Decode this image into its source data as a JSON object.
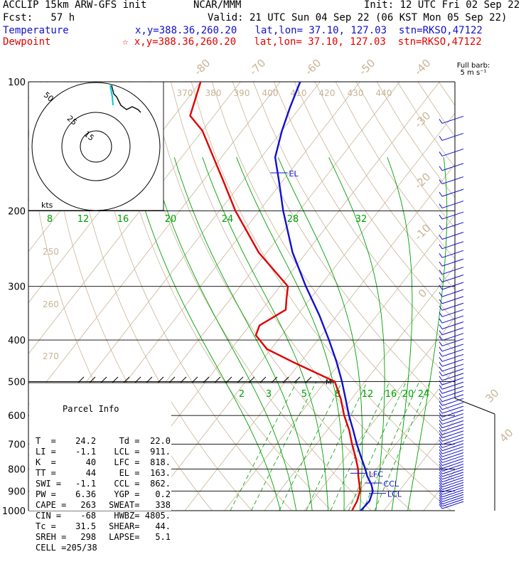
{
  "header": {
    "model": "ACCLIP 15km ARW-GFS init",
    "org": "NCAR/MMM",
    "init": "Init: 12 UTC Fri 02 Sep 22",
    "fcst": "Fcst:   57 h",
    "valid": "Valid: 21 UTC Sun 04 Sep 22 (06 KST Mon 05 Sep 22)",
    "temp_label": "Temperature",
    "temp_info": "x,y=388.36,260.20   lat,lon= 37.10, 127.03  stn=RKSO,47122",
    "dew_label": "Dewpoint",
    "dew_info": "☆ x,y=388.36,260.20   lat,lon= 37.10, 127.03  stn=RKSO,47122"
  },
  "barb_legend": {
    "line1": "Full barb:",
    "line2": "5 m s⁻¹"
  },
  "hodograph": {
    "units": "kts",
    "ring_labels": [
      "50",
      "25",
      "15"
    ]
  },
  "parcel": {
    "title": "Parcel Info",
    "rows": [
      [
        "T  =",
        "24.2",
        "Td =",
        "22.0"
      ],
      [
        "LI =",
        "-1.1",
        "LCL =",
        "911."
      ],
      [
        "K  =",
        "40",
        "LFC =",
        "818."
      ],
      [
        "TT =",
        "44",
        "EL =",
        "163."
      ],
      [
        "SWI =",
        "-1.1",
        "CCL =",
        "862."
      ],
      [
        "PW =",
        "6.36",
        "YGP =",
        "0.2"
      ],
      [
        "CAPE =",
        "263",
        "SWEAT=",
        "338"
      ],
      [
        "CIN =",
        "-68",
        "HWBZ=",
        "4805."
      ],
      [
        "Tc =",
        "31.5",
        "SHEAR=",
        "44."
      ],
      [
        "SREH =",
        "298",
        "LAPSE=",
        "5.1"
      ],
      [
        "CELL =",
        "205/38",
        "",
        ""
      ]
    ]
  },
  "colors": {
    "temperature": "#1010d0",
    "dewpoint": "#e00000",
    "mixing": "#00a000",
    "adiabat": "#c8b496",
    "hodo_cyan": "#00c8e0"
  },
  "chart_data": {
    "type": "line",
    "yaxis": "pressure (hPa)",
    "ylim": [
      1000,
      100
    ],
    "pressure_ticks": [
      100,
      200,
      300,
      400,
      500,
      600,
      700,
      800,
      900,
      1000
    ],
    "dry_adiabat_labels": [
      "250",
      "260",
      "270",
      "370",
      "380",
      "390",
      "400",
      "410",
      "420",
      "430",
      "440"
    ],
    "mixing_ratio_labels_upper": [
      "8",
      "12",
      "16",
      "20",
      "24",
      "28",
      "32"
    ],
    "mixing_ratio_labels_lower": [
      "2",
      "3",
      "5",
      "8",
      "12",
      "16",
      "20",
      "24"
    ],
    "isotherm_labels": [
      "-80",
      "-70",
      "-60",
      "-50",
      "-40",
      "-30",
      "-20",
      "-10",
      "0",
      "30",
      "40"
    ],
    "levels": {
      "EL": "EL",
      "LFC": "LFC",
      "CCL": "CCL",
      "LCL": "LCL",
      "M": "M"
    },
    "series": [
      {
        "name": "Temperature",
        "pressure": [
          1000,
          950,
          900,
          870,
          830,
          800,
          750,
          700,
          650,
          600,
          550,
          500,
          450,
          400,
          350,
          300,
          250,
          200,
          170,
          150,
          130,
          115,
          100
        ],
        "values": [
          24.2,
          24.5,
          23.4,
          21.8,
          19.0,
          17.2,
          13.8,
          10.2,
          6.6,
          2.6,
          -1.4,
          -5.8,
          -11.0,
          -17.2,
          -24.5,
          -33.5,
          -43.5,
          -54.0,
          -61.0,
          -66.5,
          -70.0,
          -72.5,
          -75.0
        ]
      },
      {
        "name": "Dewpoint",
        "pressure": [
          1000,
          950,
          900,
          870,
          830,
          800,
          750,
          700,
          650,
          600,
          550,
          500,
          450,
          420,
          390,
          370,
          340,
          320,
          300,
          250,
          200,
          170,
          150,
          130,
          120,
          100
        ],
        "values": [
          22.0,
          21.4,
          20.2,
          18.8,
          16.8,
          15.4,
          12.4,
          9.0,
          5.6,
          1.4,
          -2.6,
          -7.6,
          -22.0,
          -31.0,
          -36.5,
          -37.5,
          -34.0,
          -36.0,
          -38.0,
          -52.0,
          -66.0,
          -75.0,
          -82.0,
          -90.0,
          -96.0,
          -100.0
        ]
      }
    ]
  }
}
